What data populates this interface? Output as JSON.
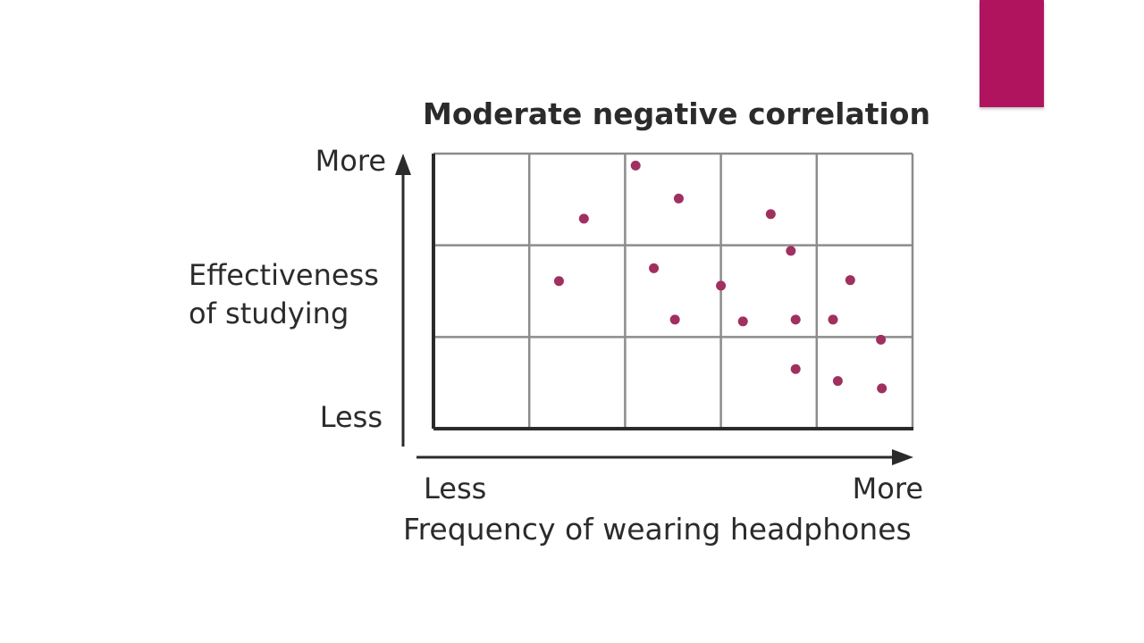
{
  "slide": {
    "accent_color": "#b0145f"
  },
  "chart_data": {
    "type": "scatter",
    "title": "Moderate negative correlation",
    "xlabel": "Frequency of wearing headphones",
    "ylabel": [
      "Effectiveness",
      "of studying"
    ],
    "x_tick_labels": {
      "low": "Less",
      "high": "More"
    },
    "y_tick_labels": {
      "low": "Less",
      "high": "More"
    },
    "xlim": [
      0,
      5
    ],
    "ylim": [
      0,
      3
    ],
    "grid": true,
    "grid_color": "#8c8c8c",
    "point_color": "#a0305f",
    "series": [
      {
        "points": [
          [
            1.57,
            2.29
          ],
          [
            1.31,
            1.61
          ],
          [
            2.11,
            2.87
          ],
          [
            2.56,
            2.51
          ],
          [
            2.3,
            1.75
          ],
          [
            2.52,
            1.19
          ],
          [
            3.0,
            1.56
          ],
          [
            3.23,
            1.17
          ],
          [
            3.52,
            2.34
          ],
          [
            3.73,
            1.94
          ],
          [
            3.78,
            1.19
          ],
          [
            4.17,
            1.19
          ],
          [
            4.35,
            1.62
          ],
          [
            4.67,
            0.97
          ],
          [
            3.78,
            0.65
          ],
          [
            4.22,
            0.52
          ],
          [
            4.68,
            0.44
          ]
        ]
      }
    ]
  }
}
